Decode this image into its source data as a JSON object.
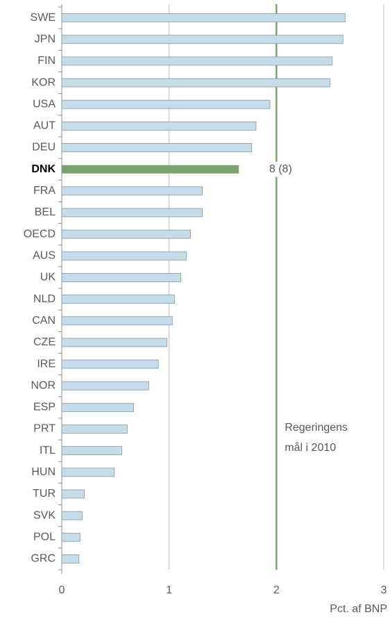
{
  "chart_data": {
    "type": "barh",
    "categories": [
      "SWE",
      "JPN",
      "FIN",
      "KOR",
      "USA",
      "AUT",
      "DEU",
      "DNK",
      "FRA",
      "BEL",
      "OECD",
      "AUS",
      "UK",
      "NLD",
      "CAN",
      "CZE",
      "IRE",
      "NOR",
      "ESP",
      "PRT",
      "ITL",
      "HUN",
      "TUR",
      "SVK",
      "POL",
      "GRC"
    ],
    "values": [
      2.64,
      2.62,
      2.52,
      2.5,
      1.94,
      1.81,
      1.77,
      1.65,
      1.31,
      1.31,
      1.2,
      1.16,
      1.11,
      1.05,
      1.03,
      0.98,
      0.9,
      0.81,
      0.67,
      0.61,
      0.56,
      0.49,
      0.21,
      0.19,
      0.17,
      0.16
    ],
    "color": "#c6dce9",
    "highlight_index": 7,
    "highlight_color": "#78a46c",
    "xlim": [
      0,
      3
    ],
    "xticks": [
      0,
      1,
      2,
      3
    ],
    "grid": true,
    "x_label": "Pct. af BNP",
    "target": 2,
    "target_color": "#78a46c",
    "annotations": {
      "rank": "8 (8)",
      "target_label": [
        "Regeringens",
        "mål i 2010"
      ]
    }
  }
}
